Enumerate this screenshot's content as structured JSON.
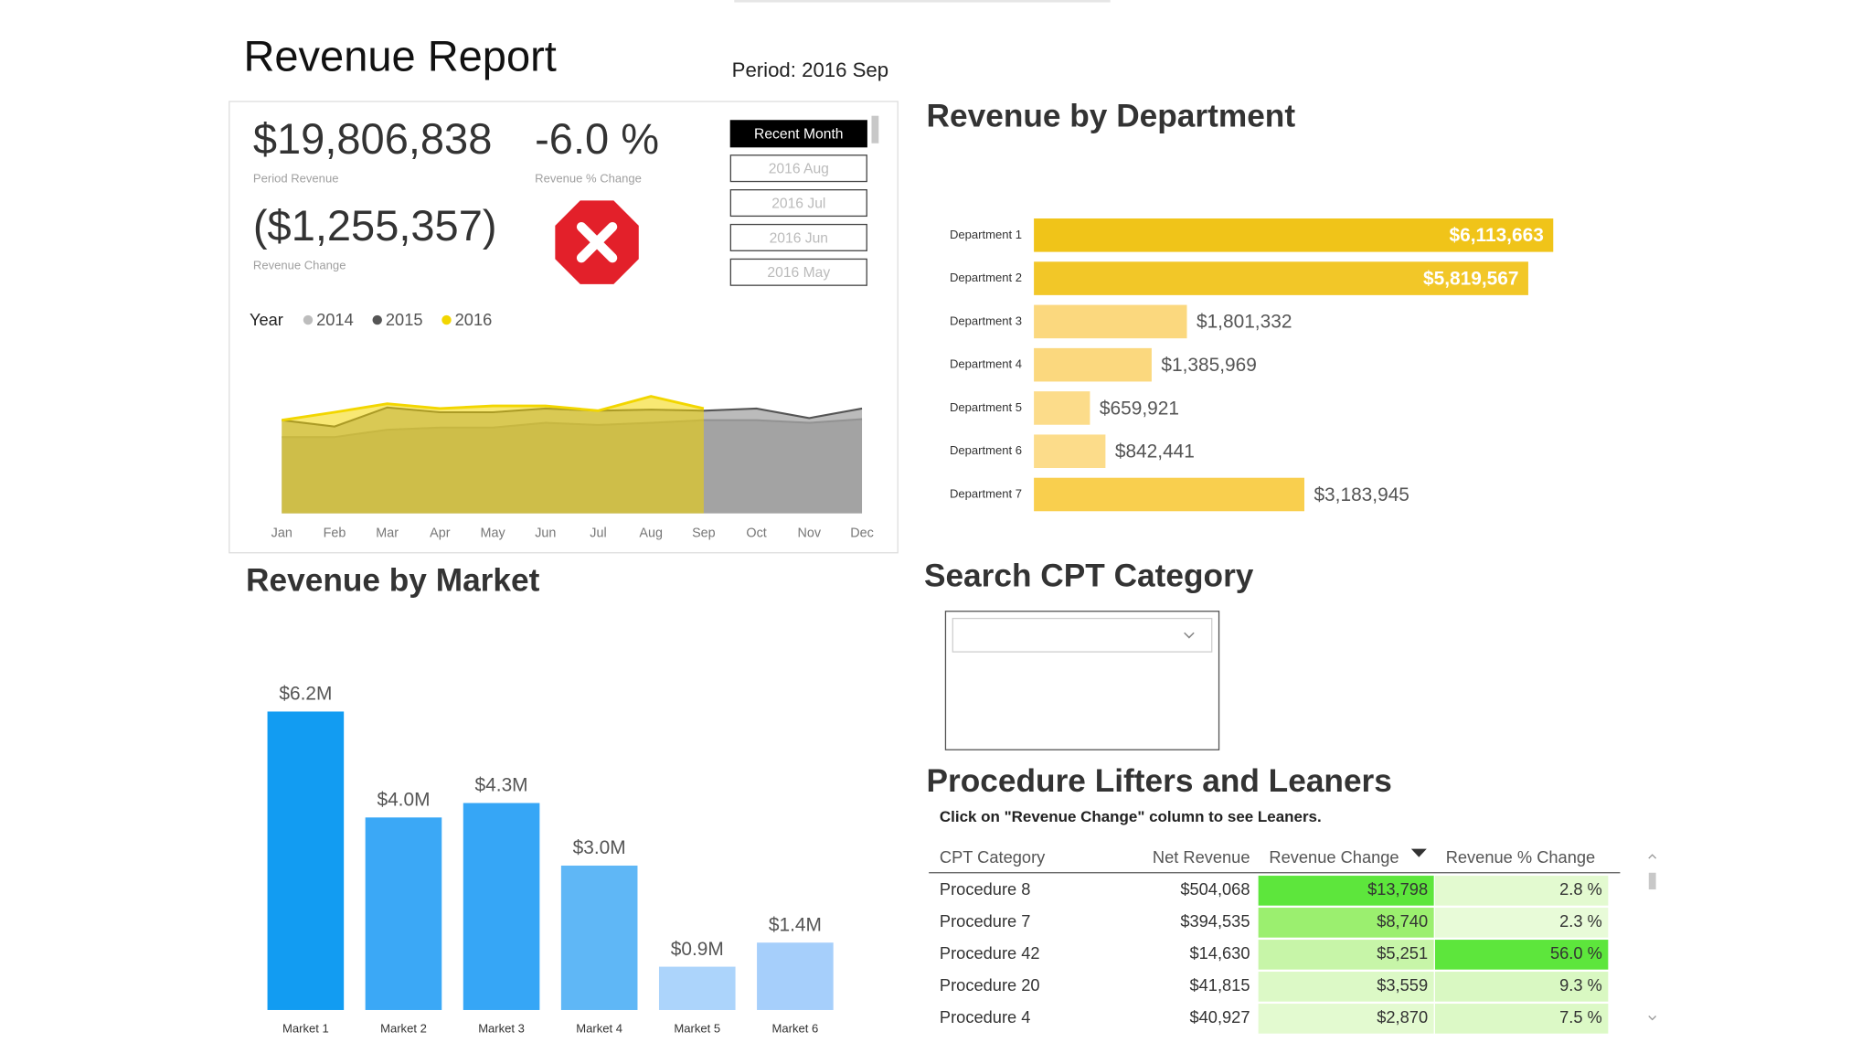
{
  "header": {
    "title": "Revenue Report",
    "period": "Period: 2016 Sep"
  },
  "kpis": [
    {
      "value": "$19,806,838",
      "label": "Period Revenue"
    },
    {
      "value": "-6.0 %",
      "label": "Revenue % Change"
    },
    {
      "value": "($1,255,357)",
      "label": "Revenue Change"
    }
  ],
  "period_slicer": {
    "items": [
      "Recent Month",
      "2016 Aug",
      "2016 Jul",
      "2016 Jun",
      "2016 May"
    ],
    "selected": 0
  },
  "chart_data": [
    {
      "type": "area",
      "legend_title": "Year",
      "categories": [
        "Jan",
        "Feb",
        "Mar",
        "Apr",
        "May",
        "Jun",
        "Jul",
        "Aug",
        "Sep",
        "Oct",
        "Nov",
        "Dec"
      ],
      "series": [
        {
          "name": "2014",
          "color": "#bdbdbd",
          "values": [
            14.4,
            14.4,
            15.8,
            16.2,
            16.2,
            17.1,
            16.7,
            17.1,
            17.6,
            17.6,
            17.1,
            17.8
          ]
        },
        {
          "name": "2015",
          "color": "#555555",
          "values": [
            17.6,
            16.4,
            20.0,
            19.1,
            19.1,
            19.8,
            19.4,
            19.6,
            19.4,
            19.8,
            18.0,
            19.8
          ]
        },
        {
          "name": "2016",
          "color": "#f2d600",
          "values": [
            17.6,
            19.1,
            20.7,
            19.8,
            20.3,
            20.3,
            19.4,
            22.1,
            19.8,
            null,
            null,
            null
          ]
        }
      ]
    },
    {
      "type": "bar",
      "orientation": "horizontal",
      "title": "Revenue by Department",
      "categories": [
        "Department 1",
        "Department 2",
        "Department 3",
        "Department 4",
        "Department 5",
        "Department 6",
        "Department 7"
      ],
      "values": [
        6113663,
        5819567,
        1801332,
        1385969,
        659921,
        842441,
        3183945
      ],
      "value_labels": [
        "$6,113,663",
        "$5,819,567",
        "$1,801,332",
        "$1,385,969",
        "$659,921",
        "$842,441",
        "$3,183,945"
      ],
      "colors": [
        "#f0c419",
        "#f2c728",
        "#fbd87e",
        "#fbd87e",
        "#fcdc8a",
        "#fcdc8a",
        "#f9cf4e"
      ]
    },
    {
      "type": "bar",
      "title": "Revenue by Market",
      "categories": [
        "Market 1",
        "Market 2",
        "Market 3",
        "Market 4",
        "Market 5",
        "Market 6"
      ],
      "values": [
        6200000,
        4000000,
        4300000,
        3000000,
        900000,
        1400000
      ],
      "value_labels": [
        "$6.2M",
        "$4.0M",
        "$4.3M",
        "$3.0M",
        "$0.9M",
        "$1.4M"
      ],
      "colors": [
        "#129cf2",
        "#3ba8f6",
        "#36a6f6",
        "#5fb7f6",
        "#acd4fb",
        "#a6cffb"
      ]
    }
  ],
  "search": {
    "title": "Search CPT Category"
  },
  "table": {
    "title": "Procedure Lifters and Leaners",
    "subtitle": "Click on \"Revenue Change\" column to see Leaners.",
    "columns": [
      "CPT Category",
      "Net Revenue",
      "Revenue Change",
      "Revenue % Change"
    ],
    "sort_column": 2,
    "rows": [
      [
        "Procedure 8",
        "$504,068",
        "$13,798",
        "2.8 %"
      ],
      [
        "Procedure 7",
        "$394,535",
        "$8,740",
        "2.3 %"
      ],
      [
        "Procedure 42",
        "$14,630",
        "$5,251",
        "56.0 %"
      ],
      [
        "Procedure 20",
        "$41,815",
        "$3,559",
        "9.3 %"
      ],
      [
        "Procedure 4",
        "$40,927",
        "$2,870",
        "7.5 %"
      ]
    ],
    "cell_colors": [
      [
        null,
        null,
        "#5de63c",
        "#e3fad0"
      ],
      [
        null,
        null,
        "#9bef6f",
        "#e8fbd8"
      ],
      [
        null,
        null,
        "#c7f5a8",
        "#5de63c"
      ],
      [
        null,
        null,
        "#dcf9c6",
        "#d9f8c2"
      ],
      [
        null,
        null,
        "#e3fad0",
        "#dcf9c6"
      ]
    ]
  }
}
